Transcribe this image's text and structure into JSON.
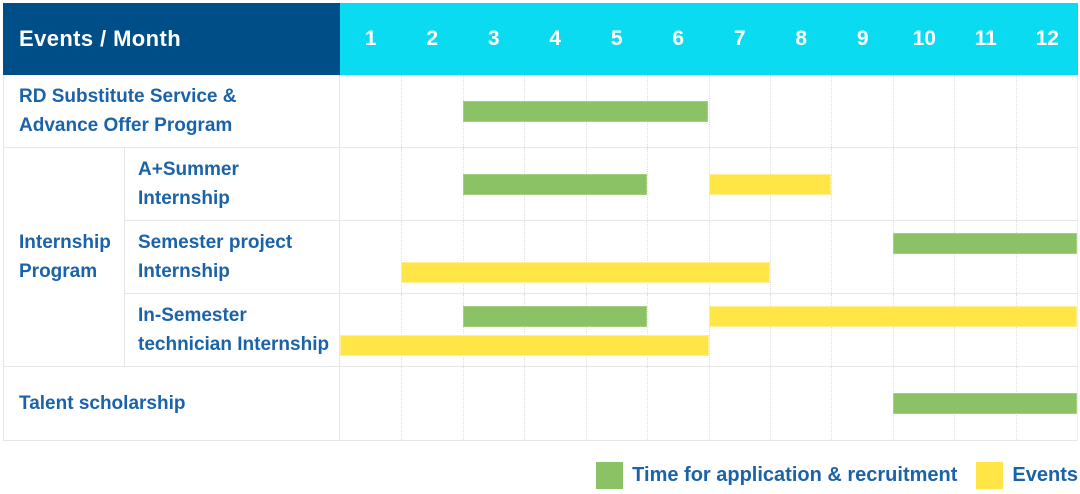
{
  "header": {
    "title": "Events / Month",
    "months": [
      "1",
      "2",
      "3",
      "4",
      "5",
      "6",
      "7",
      "8",
      "9",
      "10",
      "11",
      "12"
    ]
  },
  "rows": {
    "rd": {
      "label": "RD Substitute Service &\nAdvance Offer Program"
    },
    "internship_group": {
      "label": "Internship\nProgram"
    },
    "a_summer": {
      "label": "A+Summer\nInternship"
    },
    "semester_project": {
      "label": "Semester project\nInternship"
    },
    "in_semester": {
      "label": "In-Semester\ntechnician Internship"
    },
    "talent": {
      "label": "Talent scholarship"
    }
  },
  "palette": {
    "navy_header": "#004e87",
    "cyan_header": "#0bdbf0",
    "green_bar": "#8bc266",
    "yellow_bar": "#ffe546",
    "label_blue": "#1b63a9",
    "grid_gray": "#e6e6e6"
  },
  "chart_data": {
    "type": "bar",
    "subtype": "gantt-timeline",
    "title": "Events / Month",
    "x_axis": {
      "label": "Month",
      "ticks": [
        1,
        2,
        3,
        4,
        5,
        6,
        7,
        8,
        9,
        10,
        11,
        12
      ],
      "range": [
        1,
        12
      ]
    },
    "grid": "vertical-dotted",
    "legend_position": "bottom-right",
    "series": [
      {
        "id": "recruitment",
        "label": "Time for application & recruitment",
        "color": "#8bc266",
        "border": "#a5d07f"
      },
      {
        "id": "events",
        "label": "Events",
        "color": "#ffe546",
        "border": "#ffef92"
      }
    ],
    "rows": [
      {
        "name": "RD Substitute Service & Advance Offer Program",
        "bars": [
          {
            "series": "recruitment",
            "start_month": 3,
            "end_month": 6,
            "lane": "center"
          }
        ]
      },
      {
        "name": "A+Summer Internship",
        "group": "Internship Program",
        "bars": [
          {
            "series": "recruitment",
            "start_month": 3,
            "end_month": 5,
            "lane": "center"
          },
          {
            "series": "events",
            "start_month": 7,
            "end_month": 8,
            "lane": "center"
          }
        ]
      },
      {
        "name": "Semester project Internship",
        "group": "Internship Program",
        "bars": [
          {
            "series": "recruitment",
            "start_month": 10,
            "end_month": 12,
            "lane": "top"
          },
          {
            "series": "events",
            "start_month": 2,
            "end_month": 7,
            "lane": "bottom"
          }
        ]
      },
      {
        "name": "In-Semester technician Internship",
        "group": "Internship Program",
        "bars": [
          {
            "series": "recruitment",
            "start_month": 3,
            "end_month": 5,
            "lane": "top"
          },
          {
            "series": "events",
            "start_month": 7,
            "end_month": 12,
            "lane": "top"
          },
          {
            "series": "events",
            "start_month": 1,
            "end_month": 6,
            "lane": "bottom"
          }
        ]
      },
      {
        "name": "Talent scholarship",
        "bars": [
          {
            "series": "recruitment",
            "start_month": 10,
            "end_month": 12,
            "lane": "center"
          }
        ]
      }
    ]
  }
}
